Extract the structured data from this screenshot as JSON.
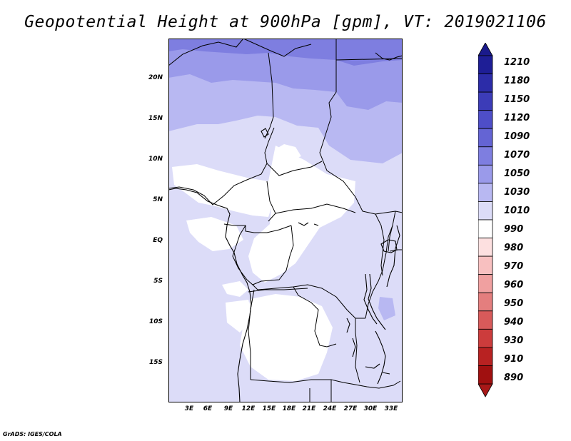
{
  "title": "Geopotential Height at 900hPa [gpm], VT: 2019021106",
  "map": {
    "region": "Central Africa",
    "variable": "Geopotential Height",
    "level": "900hPa",
    "units": "gpm",
    "valid_time": "2019021106",
    "lat_labels": [
      "20N",
      "15N",
      "10N",
      "5N",
      "EQ",
      "5S",
      "10S",
      "15S"
    ],
    "lon_labels": [
      "3E",
      "6E",
      "9E",
      "12E",
      "15E",
      "18E",
      "21E",
      "24E",
      "27E",
      "30E",
      "33E"
    ]
  },
  "colorbar": {
    "levels": [
      "1210",
      "1180",
      "1150",
      "1120",
      "1090",
      "1070",
      "1050",
      "1030",
      "1010",
      "990",
      "980",
      "970",
      "960",
      "950",
      "940",
      "930",
      "910",
      "890"
    ],
    "colors": [
      "#1e1e96",
      "#2c2ca8",
      "#3c3cb8",
      "#4e4ec8",
      "#6464d4",
      "#7e7ee0",
      "#9a9aea",
      "#b8b8f2",
      "#dcdcf8",
      "#ffffff",
      "#fde0e0",
      "#f8c0c0",
      "#f0a0a0",
      "#e47e7e",
      "#d85a5a",
      "#cc3c3c",
      "#b82222",
      "#a01010"
    ],
    "cap_top_color": "#1a1a8c",
    "cap_bottom_color": "#a81818"
  },
  "credit": "GrADS: IGES/COLA"
}
